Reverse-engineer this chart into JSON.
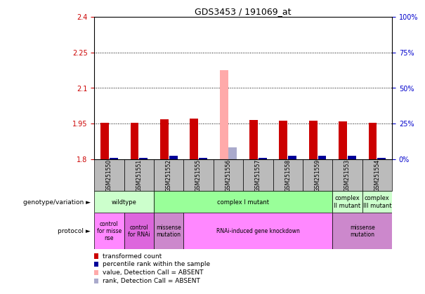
{
  "title": "GDS3453 / 191069_at",
  "samples": [
    "GSM251550",
    "GSM251551",
    "GSM251552",
    "GSM251555",
    "GSM251556",
    "GSM251557",
    "GSM251558",
    "GSM251559",
    "GSM251553",
    "GSM251554"
  ],
  "ylim": [
    1.8,
    2.4
  ],
  "yticks_left": [
    1.8,
    1.95,
    2.1,
    2.25,
    2.4
  ],
  "yticks_right": [
    0,
    25,
    50,
    75,
    100
  ],
  "red_values": [
    1.952,
    1.952,
    1.968,
    1.972,
    1.8,
    1.966,
    1.962,
    1.963,
    1.958,
    1.952
  ],
  "pink_values": [
    1.952,
    1.952,
    1.968,
    1.972,
    2.175,
    1.966,
    1.962,
    1.963,
    1.958,
    1.952
  ],
  "blue_values": [
    1.806,
    1.804,
    1.815,
    1.805,
    1.8,
    1.805,
    1.815,
    1.815,
    1.815,
    1.804
  ],
  "lblue_values": [
    1.806,
    1.804,
    1.808,
    1.805,
    1.85,
    1.805,
    1.808,
    1.808,
    1.808,
    1.804
  ],
  "red_absent": [
    false,
    false,
    false,
    false,
    true,
    false,
    false,
    false,
    false,
    false
  ],
  "blue_absent": [
    false,
    false,
    false,
    false,
    true,
    false,
    false,
    false,
    false,
    false
  ],
  "color_red": "#cc0000",
  "color_pink": "#ffaaaa",
  "color_blue": "#000099",
  "color_lblue": "#aaaacc",
  "color_bg": "#ffffff",
  "color_axis_left": "#cc0000",
  "color_axis_right": "#0000cc",
  "color_sample_bg": "#bbbbbb",
  "genotype_groups": [
    {
      "label": "wildtype",
      "start": 0,
      "end": 2,
      "color": "#ccffcc"
    },
    {
      "label": "complex I mutant",
      "start": 2,
      "end": 8,
      "color": "#99ff99"
    },
    {
      "label": "complex\nII mutant",
      "start": 8,
      "end": 9,
      "color": "#ccffcc"
    },
    {
      "label": "complex\nIII mutant",
      "start": 9,
      "end": 10,
      "color": "#ccffcc"
    }
  ],
  "protocol_groups": [
    {
      "label": "control\nfor misse\nnse",
      "start": 0,
      "end": 1,
      "color": "#ff88ff"
    },
    {
      "label": "control\nfor RNAi",
      "start": 1,
      "end": 2,
      "color": "#dd66dd"
    },
    {
      "label": "missense\nmutation",
      "start": 2,
      "end": 3,
      "color": "#cc88cc"
    },
    {
      "label": "RNAi-induced gene knockdown",
      "start": 3,
      "end": 8,
      "color": "#ff88ff"
    },
    {
      "label": "missense\nmutation",
      "start": 8,
      "end": 10,
      "color": "#cc88cc"
    }
  ],
  "legend_items": [
    {
      "color": "#cc0000",
      "label": "transformed count"
    },
    {
      "color": "#000099",
      "label": "percentile rank within the sample"
    },
    {
      "color": "#ffaaaa",
      "label": "value, Detection Call = ABSENT"
    },
    {
      "color": "#aaaacc",
      "label": "rank, Detection Call = ABSENT"
    }
  ]
}
